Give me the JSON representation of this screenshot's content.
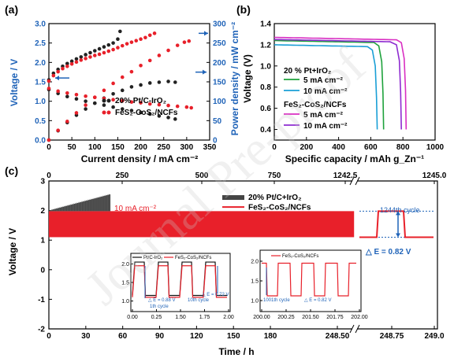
{
  "panels": {
    "a": {
      "label": "(a)"
    },
    "b": {
      "label": "(b)"
    },
    "c": {
      "label": "(c)"
    }
  },
  "chart_data": [
    {
      "id": "a",
      "type": "scatter",
      "xlabel": "Current density / mA cm⁻²",
      "ylabel_left": "Voltage / V",
      "ylabel_right": "Power density / mW cm⁻²",
      "xlim": [
        0,
        350
      ],
      "xticks": [
        "0",
        "50",
        "100",
        "150",
        "200",
        "250",
        "300",
        "350"
      ],
      "ylim_left": [
        0.0,
        3.0
      ],
      "yticks_left": [
        "0.0",
        "0.5",
        "1.0",
        "1.5",
        "2.0",
        "2.5",
        "3.0"
      ],
      "ylim_right": [
        0,
        300
      ],
      "yticks_right": [
        "0",
        "50",
        "100",
        "150",
        "200",
        "250",
        "300"
      ],
      "legend": [
        "20% Pt/C-IrO₂",
        "FeS₂-CoS₂/NCFs"
      ],
      "series": [
        {
          "name": "20% Pt/C-IrO₂",
          "kind": "charge",
          "color": "#222222",
          "x": [
            0,
            10,
            20,
            30,
            40,
            50,
            60,
            70,
            80,
            90,
            100,
            110,
            120,
            130,
            140,
            150,
            155
          ],
          "y": [
            1.55,
            1.72,
            1.82,
            1.9,
            1.97,
            2.03,
            2.09,
            2.14,
            2.2,
            2.25,
            2.3,
            2.35,
            2.4,
            2.45,
            2.5,
            2.6,
            2.8
          ]
        },
        {
          "name": "20% Pt/C-IrO₂",
          "kind": "discharge",
          "color": "#222222",
          "x": [
            0,
            20,
            40,
            60,
            80,
            100,
            120,
            140,
            160,
            180,
            200,
            220,
            240,
            260,
            275
          ],
          "y": [
            1.3,
            1.2,
            1.12,
            1.06,
            1.0,
            0.95,
            0.9,
            0.85,
            0.8,
            0.76,
            0.71,
            0.67,
            0.62,
            0.58,
            0.54
          ]
        },
        {
          "name": "20% Pt/C-IrO₂",
          "kind": "power",
          "color": "#222222",
          "x": [
            0,
            20,
            40,
            60,
            80,
            100,
            120,
            140,
            160,
            180,
            200,
            220,
            240,
            260,
            275
          ],
          "y": [
            0,
            24,
            45,
            64,
            80,
            95,
            108,
            119,
            128,
            137,
            142,
            147,
            149,
            151,
            149
          ]
        },
        {
          "name": "FeS₂-CoS₂/NCFs",
          "kind": "charge",
          "color": "#e8202a",
          "x": [
            0,
            10,
            20,
            30,
            40,
            50,
            60,
            70,
            80,
            90,
            100,
            110,
            120,
            130,
            140,
            150,
            160,
            170,
            180,
            190,
            200,
            210,
            220,
            230
          ],
          "y": [
            1.52,
            1.66,
            1.76,
            1.84,
            1.9,
            1.96,
            2.01,
            2.06,
            2.1,
            2.14,
            2.18,
            2.21,
            2.25,
            2.29,
            2.33,
            2.38,
            2.43,
            2.48,
            2.52,
            2.56,
            2.6,
            2.64,
            2.7,
            2.75
          ]
        },
        {
          "name": "FeS₂-CoS₂/NCFs",
          "kind": "discharge",
          "color": "#e8202a",
          "x": [
            0,
            20,
            40,
            60,
            80,
            100,
            120,
            140,
            160,
            180,
            200,
            220,
            240,
            260,
            280,
            300,
            310
          ],
          "y": [
            1.33,
            1.26,
            1.21,
            1.17,
            1.13,
            1.1,
            1.07,
            1.04,
            1.01,
            0.98,
            0.96,
            0.93,
            0.91,
            0.89,
            0.87,
            0.85,
            0.83
          ]
        },
        {
          "name": "FeS₂-CoS₂/NCFs",
          "kind": "power",
          "color": "#e8202a",
          "x": [
            0,
            20,
            40,
            60,
            80,
            100,
            120,
            140,
            160,
            180,
            200,
            220,
            240,
            260,
            280,
            295,
            305
          ],
          "y": [
            0,
            25,
            48,
            70,
            90,
            110,
            128,
            146,
            162,
            176,
            192,
            205,
            218,
            231,
            244,
            252,
            255
          ]
        }
      ]
    },
    {
      "id": "b",
      "type": "line",
      "xlabel": "Specific capacity / mAh g_Zn⁻¹",
      "ylabel": "Voltage (V)",
      "xlim": [
        0,
        1000
      ],
      "xticks": [
        "0",
        "200",
        "400",
        "600",
        "800",
        "1000"
      ],
      "ylim": [
        0.3,
        1.4
      ],
      "yticks": [
        "0.4",
        "0.6",
        "0.8",
        "1.0",
        "1.2",
        "1.4"
      ],
      "legend_header_1": "20 % Pt+IrO₂",
      "legend_header_2": "FeS₂-CoS₂/NCFs",
      "series": [
        {
          "name": "5 mA cm⁻²",
          "group": "20 % Pt+IrO₂",
          "color": "#1ea23c",
          "plateau": 1.24,
          "end": 680
        },
        {
          "name": "10 mA cm⁻²",
          "group": "20 % Pt+IrO₂",
          "color": "#1a9fd6",
          "plateau": 1.2,
          "end": 640
        },
        {
          "name": "5 mA cm⁻²",
          "group": "FeS₂-CoS₂/NCFs",
          "color": "#d92fc2",
          "plateau": 1.27,
          "end": 820
        },
        {
          "name": "10 mA cm⁻²",
          "group": "FeS₂-CoS₂/NCFs",
          "color": "#8e2bd0",
          "plateau": 1.25,
          "end": 790
        }
      ]
    },
    {
      "id": "c",
      "type": "line",
      "xlabel": "Time / h",
      "ylabel": "Voltage / V",
      "ylim": [
        -2,
        3
      ],
      "yticks": [
        "-2",
        "-1",
        "0",
        "1",
        "2",
        "3"
      ],
      "xticks_bottom": [
        "0",
        "30",
        "60",
        "90",
        "120",
        "150",
        "180",
        "248.50",
        "248.75",
        "249.0"
      ],
      "xticks_top": [
        "0",
        "250",
        "500",
        "750",
        "1242.5",
        "1245.0"
      ],
      "annotation_current": "10 mA cm⁻²",
      "legend": [
        "20% Pt/C+IrO₂",
        "FeS₂-CoS₂/NCFs"
      ],
      "series": [
        {
          "name": "20% Pt/C+IrO₂",
          "color": "#444444",
          "charge_start": 2.0,
          "charge_end": 2.55,
          "discharge": 1.1,
          "end_h": 50
        },
        {
          "name": "FeS₂-CoS₂/NCFs",
          "color": "#e8202a",
          "charge": 1.98,
          "discharge": 1.1,
          "end_h": 248
        }
      ],
      "cycle_label": "1244th cycle",
      "cycle_delta": "△ E = 0.82 V",
      "insets": [
        {
          "id": "inset1",
          "xticks": [
            "0.00",
            "0.25",
            "1.50",
            "1.75",
            "2.00"
          ],
          "yticks": [
            "1.0",
            "1.5",
            "2.0"
          ],
          "legend": [
            "Pt/C-IrO₂",
            "FeS₂-CoS₂/NCFs"
          ],
          "notes": [
            "△ E = 0.88 V",
            "1th cycle",
            "10th cycle",
            "△ E = 0.72 V"
          ]
        },
        {
          "id": "inset2",
          "xticks": [
            "200.00",
            "200.25",
            "201.50",
            "201.75",
            "202.00"
          ],
          "yticks": [
            "1.0",
            "1.5",
            "2.0"
          ],
          "legend": [
            "FeS₂-CoS₂/NCFs"
          ],
          "notes": [
            "1001th cycle",
            "△ E = 0.82 V"
          ]
        }
      ]
    }
  ],
  "watermark": "Journal Pre-proof"
}
